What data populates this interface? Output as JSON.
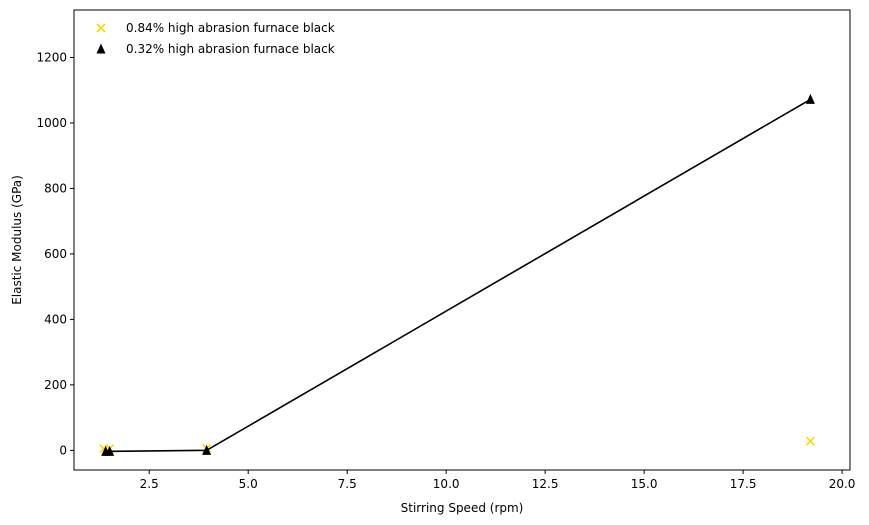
{
  "chart_data": {
    "type": "scatter",
    "xlabel": "Stirring Speed (rpm)",
    "ylabel": "Elastic Modulus (GPa)",
    "xlim": [
      0.6,
      20.2
    ],
    "ylim": [
      -60,
      1345
    ],
    "xticks": [
      2.5,
      5.0,
      7.5,
      10.0,
      12.5,
      15.0,
      17.5,
      20.0
    ],
    "xtick_labels": [
      "2.5",
      "5.0",
      "7.5",
      "10.0",
      "12.5",
      "15.0",
      "17.5",
      "20.0"
    ],
    "yticks": [
      0,
      200,
      400,
      600,
      800,
      1000,
      1200
    ],
    "ytick_labels": [
      "0",
      "200",
      "400",
      "600",
      "800",
      "1000",
      "1200"
    ],
    "grid": false,
    "legend_position": "top-left",
    "series": [
      {
        "name": "0.84% high abrasion furnace black",
        "marker": "x",
        "color": "#FFD700",
        "line": false,
        "x": [
          1.35,
          1.5,
          3.95,
          19.2
        ],
        "y": [
          5,
          5,
          6,
          28
        ]
      },
      {
        "name": "0.32% high abrasion furnace black",
        "marker": "triangle",
        "color": "#000000",
        "line": true,
        "x": [
          1.4,
          1.5,
          3.95,
          19.2
        ],
        "y": [
          -3,
          -3,
          0,
          1072
        ]
      }
    ]
  }
}
